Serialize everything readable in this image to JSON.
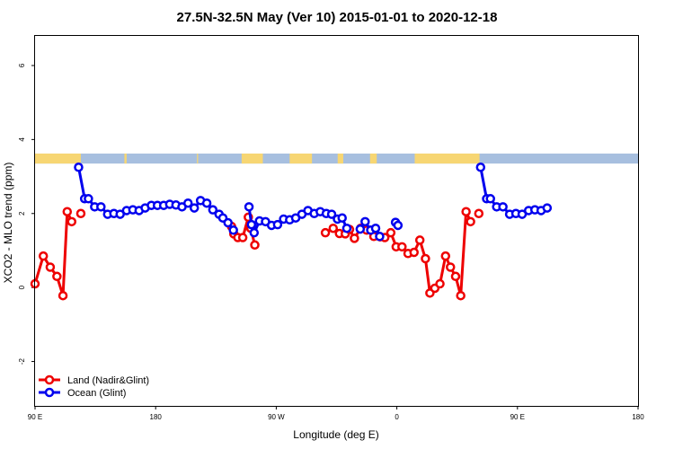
{
  "chart_data": {
    "type": "line",
    "title": "27.5N-32.5N May (Ver 10)   2015-01-01 to 2020-12-18",
    "xlabel": "Longitude (deg E)",
    "ylabel": "XCO2 - MLO trend (ppm)",
    "xlim": [
      -90,
      180
    ],
    "ylim": [
      -3.2,
      6.8
    ],
    "x_ticks": [
      -90,
      -36,
      18,
      72,
      126,
      180
    ],
    "x_tick_labels": [
      "90 E",
      "180",
      "90 W",
      "0",
      "90 E",
      "180"
    ],
    "y_ticks": [
      -2,
      0,
      2,
      4,
      6
    ],
    "y_tick_labels": [
      "-2",
      "0",
      "2",
      "4",
      "6"
    ],
    "grid": false,
    "legend_position": "bottom-left",
    "surface_strip": {
      "y_range": [
        3.35,
        3.62
      ],
      "land_color": "#f7d673",
      "ocean_color": "#a7bfdf",
      "land_segments": [
        [
          -90,
          -69.5
        ],
        [
          -50,
          -49
        ],
        [
          -17.5,
          -17
        ],
        [
          2.5,
          12
        ],
        [
          24,
          34
        ],
        [
          45.5,
          48
        ],
        [
          60,
          63
        ],
        [
          80,
          109
        ]
      ]
    },
    "series": [
      {
        "name": "Land (Nadir&Glint)",
        "color": "#ee0000",
        "segments": [
          [
            [
              -90,
              0.1
            ],
            [
              -86.3,
              0.85
            ],
            [
              -83.2,
              0.55
            ],
            [
              -80.2,
              0.3
            ],
            [
              -77.5,
              -0.22
            ],
            [
              -75.6,
              2.05
            ],
            [
              -73.6,
              1.78
            ]
          ],
          [
            [
              -69.5,
              2.0
            ]
          ],
          [
            [
              -2,
              1.65
            ],
            [
              -1,
              1.45
            ],
            [
              0.8,
              1.35
            ],
            [
              3,
              1.35
            ],
            [
              5.5,
              1.9
            ],
            [
              6.6,
              1.6
            ],
            [
              8.4,
              1.15
            ]
          ],
          [
            [
              40,
              1.48
            ],
            [
              43.5,
              1.6
            ],
            [
              46.3,
              1.46
            ],
            [
              48.9,
              1.45
            ],
            [
              50.8,
              1.57
            ],
            [
              53,
              1.33
            ],
            [
              55.8,
              1.6
            ],
            [
              58.5,
              1.55
            ],
            [
              61.7,
              1.38
            ],
            [
              64.5,
              1.37
            ],
            [
              66.6,
              1.35
            ],
            [
              69.3,
              1.48
            ],
            [
              71.7,
              1.1
            ],
            [
              74.3,
              1.1
            ],
            [
              77,
              0.92
            ],
            [
              79.7,
              0.95
            ],
            [
              82.3,
              1.28
            ],
            [
              84.8,
              0.78
            ],
            [
              86.8,
              -0.15
            ],
            [
              89,
              -0.02
            ],
            [
              91.3,
              0.1
            ],
            [
              93.8,
              0.85
            ],
            [
              96,
              0.55
            ],
            [
              98.3,
              0.3
            ],
            [
              100.6,
              -0.22
            ],
            [
              103,
              2.05
            ],
            [
              105,
              1.78
            ]
          ],
          [
            [
              108.7,
              2.0
            ]
          ]
        ]
      },
      {
        "name": "Ocean (Glint)",
        "color": "#0000ee",
        "segments": [
          [
            [
              -70.5,
              3.25
            ],
            [
              -67.8,
              2.4
            ],
            [
              -66.1,
              2.4
            ],
            [
              -63.3,
              2.18
            ],
            [
              -60.5,
              2.18
            ],
            [
              -57.5,
              1.98
            ],
            [
              -54.7,
              2.0
            ],
            [
              -51.9,
              1.98
            ],
            [
              -49,
              2.08
            ],
            [
              -46.2,
              2.1
            ],
            [
              -43.4,
              2.08
            ],
            [
              -40.7,
              2.15
            ],
            [
              -37.9,
              2.22
            ],
            [
              -35.2,
              2.22
            ],
            [
              -32.4,
              2.22
            ],
            [
              -29.7,
              2.25
            ],
            [
              -26.9,
              2.23
            ],
            [
              -24.2,
              2.18
            ],
            [
              -21.5,
              2.28
            ],
            [
              -18.7,
              2.15
            ],
            [
              -15.9,
              2.35
            ],
            [
              -13.1,
              2.28
            ],
            [
              -10.4,
              2.1
            ],
            [
              -7.6,
              1.98
            ],
            [
              -5.9,
              1.88
            ],
            [
              -3.6,
              1.75
            ],
            [
              -1.2,
              1.55
            ]
          ],
          [
            [
              5.8,
              2.18
            ],
            [
              6.9,
              1.7
            ],
            [
              8.1,
              1.48
            ],
            [
              10.5,
              1.8
            ],
            [
              13.2,
              1.78
            ],
            [
              15.9,
              1.68
            ],
            [
              18.6,
              1.7
            ],
            [
              21.3,
              1.85
            ],
            [
              24,
              1.83
            ],
            [
              26.7,
              1.88
            ],
            [
              29.5,
              1.98
            ],
            [
              32.2,
              2.08
            ],
            [
              35,
              2.0
            ],
            [
              37.7,
              2.05
            ],
            [
              40.4,
              2.0
            ],
            [
              42.8,
              1.98
            ],
            [
              45.4,
              1.85
            ],
            [
              47.5,
              1.88
            ],
            [
              49.6,
              1.6
            ]
          ],
          [
            [
              55.6,
              1.58
            ],
            [
              57.8,
              1.78
            ],
            [
              60.3,
              1.55
            ],
            [
              62.5,
              1.6
            ],
            [
              64.3,
              1.38
            ]
          ],
          [
            [
              71.4,
              1.76
            ],
            [
              72.5,
              1.68
            ]
          ],
          [
            [
              109.5,
              3.25
            ],
            [
              112.2,
              2.4
            ],
            [
              113.9,
              2.4
            ],
            [
              116.7,
              2.18
            ],
            [
              119.5,
              2.18
            ],
            [
              122.5,
              1.98
            ],
            [
              125.3,
              2.0
            ],
            [
              128.1,
              1.98
            ],
            [
              131,
              2.08
            ],
            [
              133.8,
              2.1
            ],
            [
              136.6,
              2.08
            ],
            [
              139.3,
              2.15
            ]
          ]
        ]
      }
    ]
  }
}
